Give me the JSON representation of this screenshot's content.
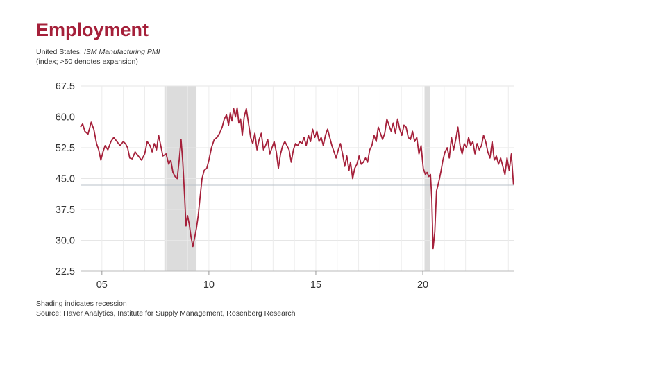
{
  "chart_data": {
    "type": "line",
    "title": "Employment",
    "subtitle_country": "United States:",
    "subtitle_series": "ISM Manufacturing PMI",
    "subtitle_note": "(index; >50 denotes expansion)",
    "xlabel": "",
    "ylabel": "",
    "xlim": [
      2004.0,
      2024.25
    ],
    "ylim": [
      22.5,
      67.5
    ],
    "y_ticks": [
      "67.5",
      "60.0",
      "52.5",
      "45.0",
      "37.5",
      "30.0",
      "22.5"
    ],
    "x_ticks": [
      {
        "label": "05",
        "value": 2005
      },
      {
        "label": "10",
        "value": 2010
      },
      {
        "label": "15",
        "value": 2015
      },
      {
        "label": "20",
        "value": 2020
      }
    ],
    "grid": true,
    "reference_line": 43.4,
    "recessions": [
      {
        "start": 2007.92,
        "end": 2009.42
      },
      {
        "start": 2020.08,
        "end": 2020.33
      }
    ],
    "series": [
      {
        "name": "ISM Manufacturing PMI: Employment",
        "color": "#a5203a",
        "points": [
          [
            2004.0,
            57.5
          ],
          [
            2004.1,
            58.3
          ],
          [
            2004.2,
            56.5
          ],
          [
            2004.35,
            55.8
          ],
          [
            2004.5,
            58.7
          ],
          [
            2004.62,
            57.0
          ],
          [
            2004.75,
            53.5
          ],
          [
            2004.85,
            52.0
          ],
          [
            2004.95,
            49.5
          ],
          [
            2005.05,
            51.5
          ],
          [
            2005.15,
            53.0
          ],
          [
            2005.28,
            52.0
          ],
          [
            2005.42,
            54.0
          ],
          [
            2005.55,
            55.0
          ],
          [
            2005.7,
            54.0
          ],
          [
            2005.85,
            53.0
          ],
          [
            2006.0,
            54.0
          ],
          [
            2006.1,
            53.5
          ],
          [
            2006.2,
            52.5
          ],
          [
            2006.3,
            50.0
          ],
          [
            2006.42,
            49.8
          ],
          [
            2006.55,
            51.5
          ],
          [
            2006.7,
            50.5
          ],
          [
            2006.85,
            49.5
          ],
          [
            2007.0,
            51.0
          ],
          [
            2007.12,
            54.0
          ],
          [
            2007.25,
            53.0
          ],
          [
            2007.35,
            51.5
          ],
          [
            2007.45,
            53.5
          ],
          [
            2007.55,
            52.0
          ],
          [
            2007.65,
            55.5
          ],
          [
            2007.75,
            53.0
          ],
          [
            2007.85,
            50.5
          ],
          [
            2008.0,
            51.0
          ],
          [
            2008.12,
            48.5
          ],
          [
            2008.22,
            49.5
          ],
          [
            2008.32,
            46.5
          ],
          [
            2008.42,
            45.5
          ],
          [
            2008.52,
            45.0
          ],
          [
            2008.62,
            50.0
          ],
          [
            2008.7,
            54.5
          ],
          [
            2008.78,
            49.0
          ],
          [
            2008.86,
            41.0
          ],
          [
            2008.93,
            33.5
          ],
          [
            2009.0,
            36.0
          ],
          [
            2009.08,
            34.0
          ],
          [
            2009.16,
            31.0
          ],
          [
            2009.25,
            28.5
          ],
          [
            2009.33,
            30.5
          ],
          [
            2009.42,
            33.0
          ],
          [
            2009.5,
            36.0
          ],
          [
            2009.58,
            40.0
          ],
          [
            2009.68,
            45.0
          ],
          [
            2009.78,
            47.0
          ],
          [
            2009.9,
            47.5
          ],
          [
            2010.0,
            49.5
          ],
          [
            2010.12,
            52.5
          ],
          [
            2010.25,
            54.5
          ],
          [
            2010.38,
            55.0
          ],
          [
            2010.5,
            56.0
          ],
          [
            2010.62,
            57.5
          ],
          [
            2010.72,
            59.5
          ],
          [
            2010.82,
            60.5
          ],
          [
            2010.92,
            58.0
          ],
          [
            2011.0,
            61.0
          ],
          [
            2011.08,
            59.0
          ],
          [
            2011.16,
            62.0
          ],
          [
            2011.24,
            60.0
          ],
          [
            2011.32,
            62.2
          ],
          [
            2011.4,
            58.5
          ],
          [
            2011.48,
            59.5
          ],
          [
            2011.56,
            55.5
          ],
          [
            2011.65,
            60.0
          ],
          [
            2011.75,
            62.0
          ],
          [
            2011.85,
            58.5
          ],
          [
            2011.95,
            55.0
          ],
          [
            2012.05,
            53.5
          ],
          [
            2012.15,
            56.0
          ],
          [
            2012.25,
            52.0
          ],
          [
            2012.35,
            54.5
          ],
          [
            2012.45,
            56.0
          ],
          [
            2012.55,
            52.0
          ],
          [
            2012.65,
            53.0
          ],
          [
            2012.75,
            54.5
          ],
          [
            2012.85,
            51.0
          ],
          [
            2012.95,
            52.5
          ],
          [
            2013.05,
            54.0
          ],
          [
            2013.15,
            51.5
          ],
          [
            2013.25,
            47.5
          ],
          [
            2013.35,
            51.0
          ],
          [
            2013.45,
            53.0
          ],
          [
            2013.55,
            54.0
          ],
          [
            2013.65,
            53.0
          ],
          [
            2013.75,
            52.0
          ],
          [
            2013.85,
            49.0
          ],
          [
            2013.95,
            52.0
          ],
          [
            2014.05,
            53.5
          ],
          [
            2014.15,
            53.0
          ],
          [
            2014.25,
            54.0
          ],
          [
            2014.35,
            53.5
          ],
          [
            2014.45,
            55.0
          ],
          [
            2014.55,
            53.0
          ],
          [
            2014.65,
            55.5
          ],
          [
            2014.75,
            54.0
          ],
          [
            2014.85,
            57.0
          ],
          [
            2014.95,
            55.0
          ],
          [
            2015.05,
            56.5
          ],
          [
            2015.15,
            54.0
          ],
          [
            2015.25,
            55.0
          ],
          [
            2015.35,
            53.0
          ],
          [
            2015.45,
            55.5
          ],
          [
            2015.55,
            57.0
          ],
          [
            2015.65,
            55.0
          ],
          [
            2015.75,
            53.0
          ],
          [
            2015.85,
            51.5
          ],
          [
            2015.95,
            50.0
          ],
          [
            2016.05,
            52.0
          ],
          [
            2016.15,
            53.5
          ],
          [
            2016.25,
            51.0
          ],
          [
            2016.35,
            48.0
          ],
          [
            2016.45,
            50.5
          ],
          [
            2016.55,
            47.0
          ],
          [
            2016.62,
            49.0
          ],
          [
            2016.72,
            45.0
          ],
          [
            2016.82,
            47.5
          ],
          [
            2016.92,
            48.5
          ],
          [
            2017.02,
            50.5
          ],
          [
            2017.12,
            48.5
          ],
          [
            2017.22,
            49.0
          ],
          [
            2017.32,
            50.0
          ],
          [
            2017.42,
            49.0
          ],
          [
            2017.52,
            52.0
          ],
          [
            2017.62,
            53.0
          ],
          [
            2017.72,
            55.5
          ],
          [
            2017.82,
            54.0
          ],
          [
            2017.92,
            57.5
          ],
          [
            2018.02,
            56.0
          ],
          [
            2018.12,
            54.5
          ],
          [
            2018.22,
            56.0
          ],
          [
            2018.32,
            59.5
          ],
          [
            2018.42,
            58.0
          ],
          [
            2018.52,
            56.5
          ],
          [
            2018.62,
            58.5
          ],
          [
            2018.72,
            56.0
          ],
          [
            2018.82,
            59.5
          ],
          [
            2018.92,
            57.0
          ],
          [
            2019.02,
            55.5
          ],
          [
            2019.12,
            58.0
          ],
          [
            2019.22,
            57.5
          ],
          [
            2019.32,
            55.0
          ],
          [
            2019.42,
            54.5
          ],
          [
            2019.52,
            56.5
          ],
          [
            2019.62,
            54.0
          ],
          [
            2019.72,
            55.0
          ],
          [
            2019.82,
            51.0
          ],
          [
            2019.92,
            53.0
          ],
          [
            2020.02,
            47.5
          ],
          [
            2020.12,
            46.0
          ],
          [
            2020.2,
            46.5
          ],
          [
            2020.28,
            45.5
          ],
          [
            2020.36,
            46.0
          ],
          [
            2020.42,
            40.0
          ],
          [
            2020.48,
            28.0
          ],
          [
            2020.56,
            32.0
          ],
          [
            2020.64,
            42.0
          ],
          [
            2020.74,
            44.0
          ],
          [
            2020.84,
            46.5
          ],
          [
            2020.94,
            49.5
          ],
          [
            2021.04,
            51.5
          ],
          [
            2021.14,
            52.5
          ],
          [
            2021.24,
            50.0
          ],
          [
            2021.34,
            55.0
          ],
          [
            2021.44,
            52.0
          ],
          [
            2021.54,
            54.5
          ],
          [
            2021.64,
            57.5
          ],
          [
            2021.74,
            53.0
          ],
          [
            2021.84,
            51.0
          ],
          [
            2021.94,
            53.5
          ],
          [
            2022.04,
            52.5
          ],
          [
            2022.14,
            55.0
          ],
          [
            2022.24,
            53.0
          ],
          [
            2022.34,
            54.0
          ],
          [
            2022.44,
            51.0
          ],
          [
            2022.54,
            53.5
          ],
          [
            2022.64,
            52.0
          ],
          [
            2022.74,
            53.0
          ],
          [
            2022.84,
            55.5
          ],
          [
            2022.94,
            54.0
          ],
          [
            2023.04,
            51.5
          ],
          [
            2023.14,
            50.0
          ],
          [
            2023.24,
            54.0
          ],
          [
            2023.34,
            49.5
          ],
          [
            2023.44,
            50.5
          ],
          [
            2023.54,
            48.5
          ],
          [
            2023.64,
            50.0
          ],
          [
            2023.74,
            48.0
          ],
          [
            2023.84,
            46.0
          ],
          [
            2023.94,
            50.0
          ],
          [
            2024.04,
            47.0
          ],
          [
            2024.14,
            51.0
          ],
          [
            2024.24,
            43.5
          ]
        ]
      }
    ]
  },
  "footer": {
    "shading_note": "Shading indicates recession",
    "source": "Source: Haver Analytics, Institute for Supply Management, Rosenberg Research"
  }
}
